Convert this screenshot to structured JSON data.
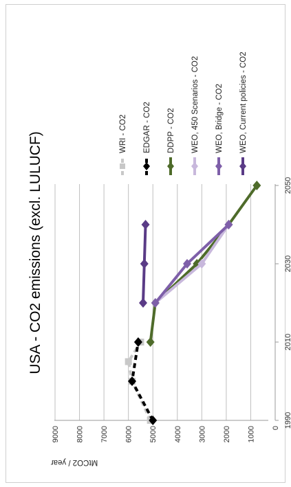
{
  "chart_data": {
    "type": "line",
    "title": "USA - CO2 emissions (excl. LULUCF)",
    "xlabel": "",
    "ylabel": "MtCO2 / year",
    "xlim": [
      1990,
      2050
    ],
    "ylim": [
      0,
      9000
    ],
    "x_ticks": [
      "1990",
      "2010",
      "2030",
      "2050"
    ],
    "y_ticks": [
      "0",
      "1000",
      "2000",
      "3000",
      "4000",
      "5000",
      "6000",
      "7000",
      "8000",
      "9000"
    ],
    "grid": true,
    "orientation": "rotated",
    "legend_position": "top",
    "series": [
      {
        "name": "WRI - CO2",
        "color": "#c8c8c8",
        "dash": "dashed",
        "marker": "square",
        "points": [
          [
            1990,
            5100
          ],
          [
            2000,
            5850
          ],
          [
            2005,
            6000
          ],
          [
            2010,
            5500
          ]
        ]
      },
      {
        "name": "EDGAR - CO2",
        "color": "#000000",
        "dash": "dashed",
        "marker": "diamond",
        "points": [
          [
            1990,
            5000
          ],
          [
            2000,
            5850
          ],
          [
            2010,
            5600
          ]
        ]
      },
      {
        "name": "DDPP - CO2",
        "color": "#4e6b2a",
        "dash": "solid",
        "marker": "diamond",
        "points": [
          [
            2010,
            5100
          ],
          [
            2020,
            4900
          ],
          [
            2030,
            3200
          ],
          [
            2040,
            1900
          ],
          [
            2050,
            750
          ]
        ]
      },
      {
        "name": "WEO, 450 Scenarios - CO2",
        "color": "#c8b8dc",
        "dash": "solid",
        "marker": "diamond",
        "points": [
          [
            2020,
            4900
          ],
          [
            2030,
            3000
          ],
          [
            2040,
            1900
          ]
        ]
      },
      {
        "name": "WEO, Bridge - CO2",
        "color": "#7e5fa9",
        "dash": "solid",
        "marker": "diamond",
        "points": [
          [
            2020,
            4900
          ],
          [
            2030,
            3600
          ],
          [
            2040,
            1900
          ]
        ]
      },
      {
        "name": "WEO, Current policies - CO2",
        "color": "#5a3b86",
        "dash": "solid",
        "marker": "diamond",
        "points": [
          [
            2020,
            5400
          ],
          [
            2030,
            5350
          ],
          [
            2040,
            5300
          ]
        ]
      }
    ]
  }
}
